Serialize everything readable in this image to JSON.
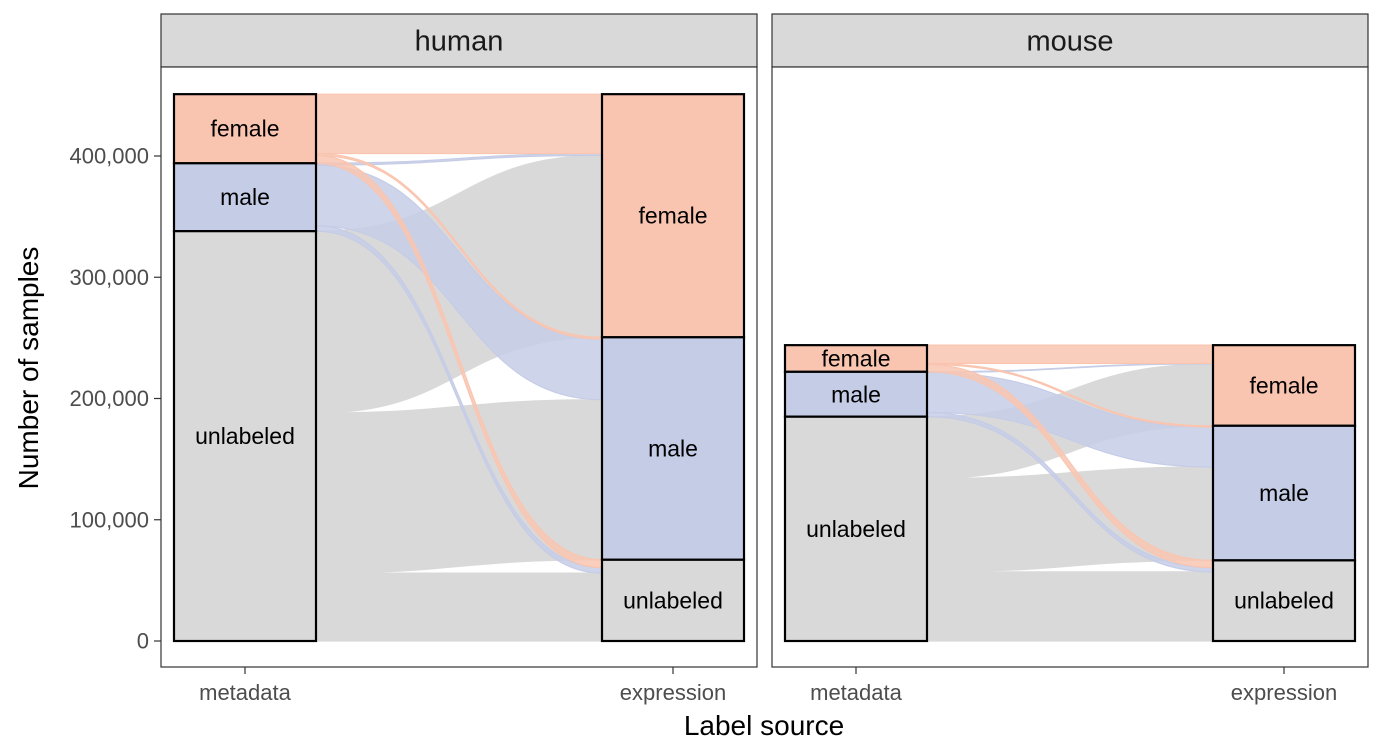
{
  "chart_data": {
    "type": "alluvial",
    "xlabel": "Label source",
    "ylabel": "Number of samples",
    "axes": [
      "metadata",
      "expression"
    ],
    "ylim": [
      0,
      450000
    ],
    "yticks": [
      0,
      100000,
      200000,
      300000,
      400000
    ],
    "ytick_labels": [
      "0",
      "100,000",
      "200,000",
      "300,000",
      "400,000"
    ],
    "categories": [
      "female",
      "male",
      "unlabeled"
    ],
    "colors": {
      "female": "#f9c5b0",
      "male": "#c5cce6",
      "unlabeled": "#d9d9d9"
    },
    "facets": [
      {
        "name": "human",
        "flows": [
          {
            "from": "female",
            "to": "female",
            "value": 49000
          },
          {
            "from": "female",
            "to": "male",
            "value": 1500
          },
          {
            "from": "female",
            "to": "unlabeled",
            "value": 6500
          },
          {
            "from": "male",
            "to": "female",
            "value": 1500
          },
          {
            "from": "male",
            "to": "male",
            "value": 50000
          },
          {
            "from": "male",
            "to": "unlabeled",
            "value": 4500
          },
          {
            "from": "unlabeled",
            "to": "female",
            "value": 150000
          },
          {
            "from": "unlabeled",
            "to": "male",
            "value": 132000
          },
          {
            "from": "unlabeled",
            "to": "unlabeled",
            "value": 56000
          }
        ]
      },
      {
        "name": "mouse",
        "flows": [
          {
            "from": "female",
            "to": "female",
            "value": 15000
          },
          {
            "from": "female",
            "to": "male",
            "value": 1000
          },
          {
            "from": "female",
            "to": "unlabeled",
            "value": 6000
          },
          {
            "from": "male",
            "to": "female",
            "value": 500
          },
          {
            "from": "male",
            "to": "male",
            "value": 33000
          },
          {
            "from": "male",
            "to": "unlabeled",
            "value": 3500
          },
          {
            "from": "unlabeled",
            "to": "female",
            "value": 51000
          },
          {
            "from": "unlabeled",
            "to": "male",
            "value": 77000
          },
          {
            "from": "unlabeled",
            "to": "unlabeled",
            "value": 57000
          }
        ]
      }
    ]
  }
}
